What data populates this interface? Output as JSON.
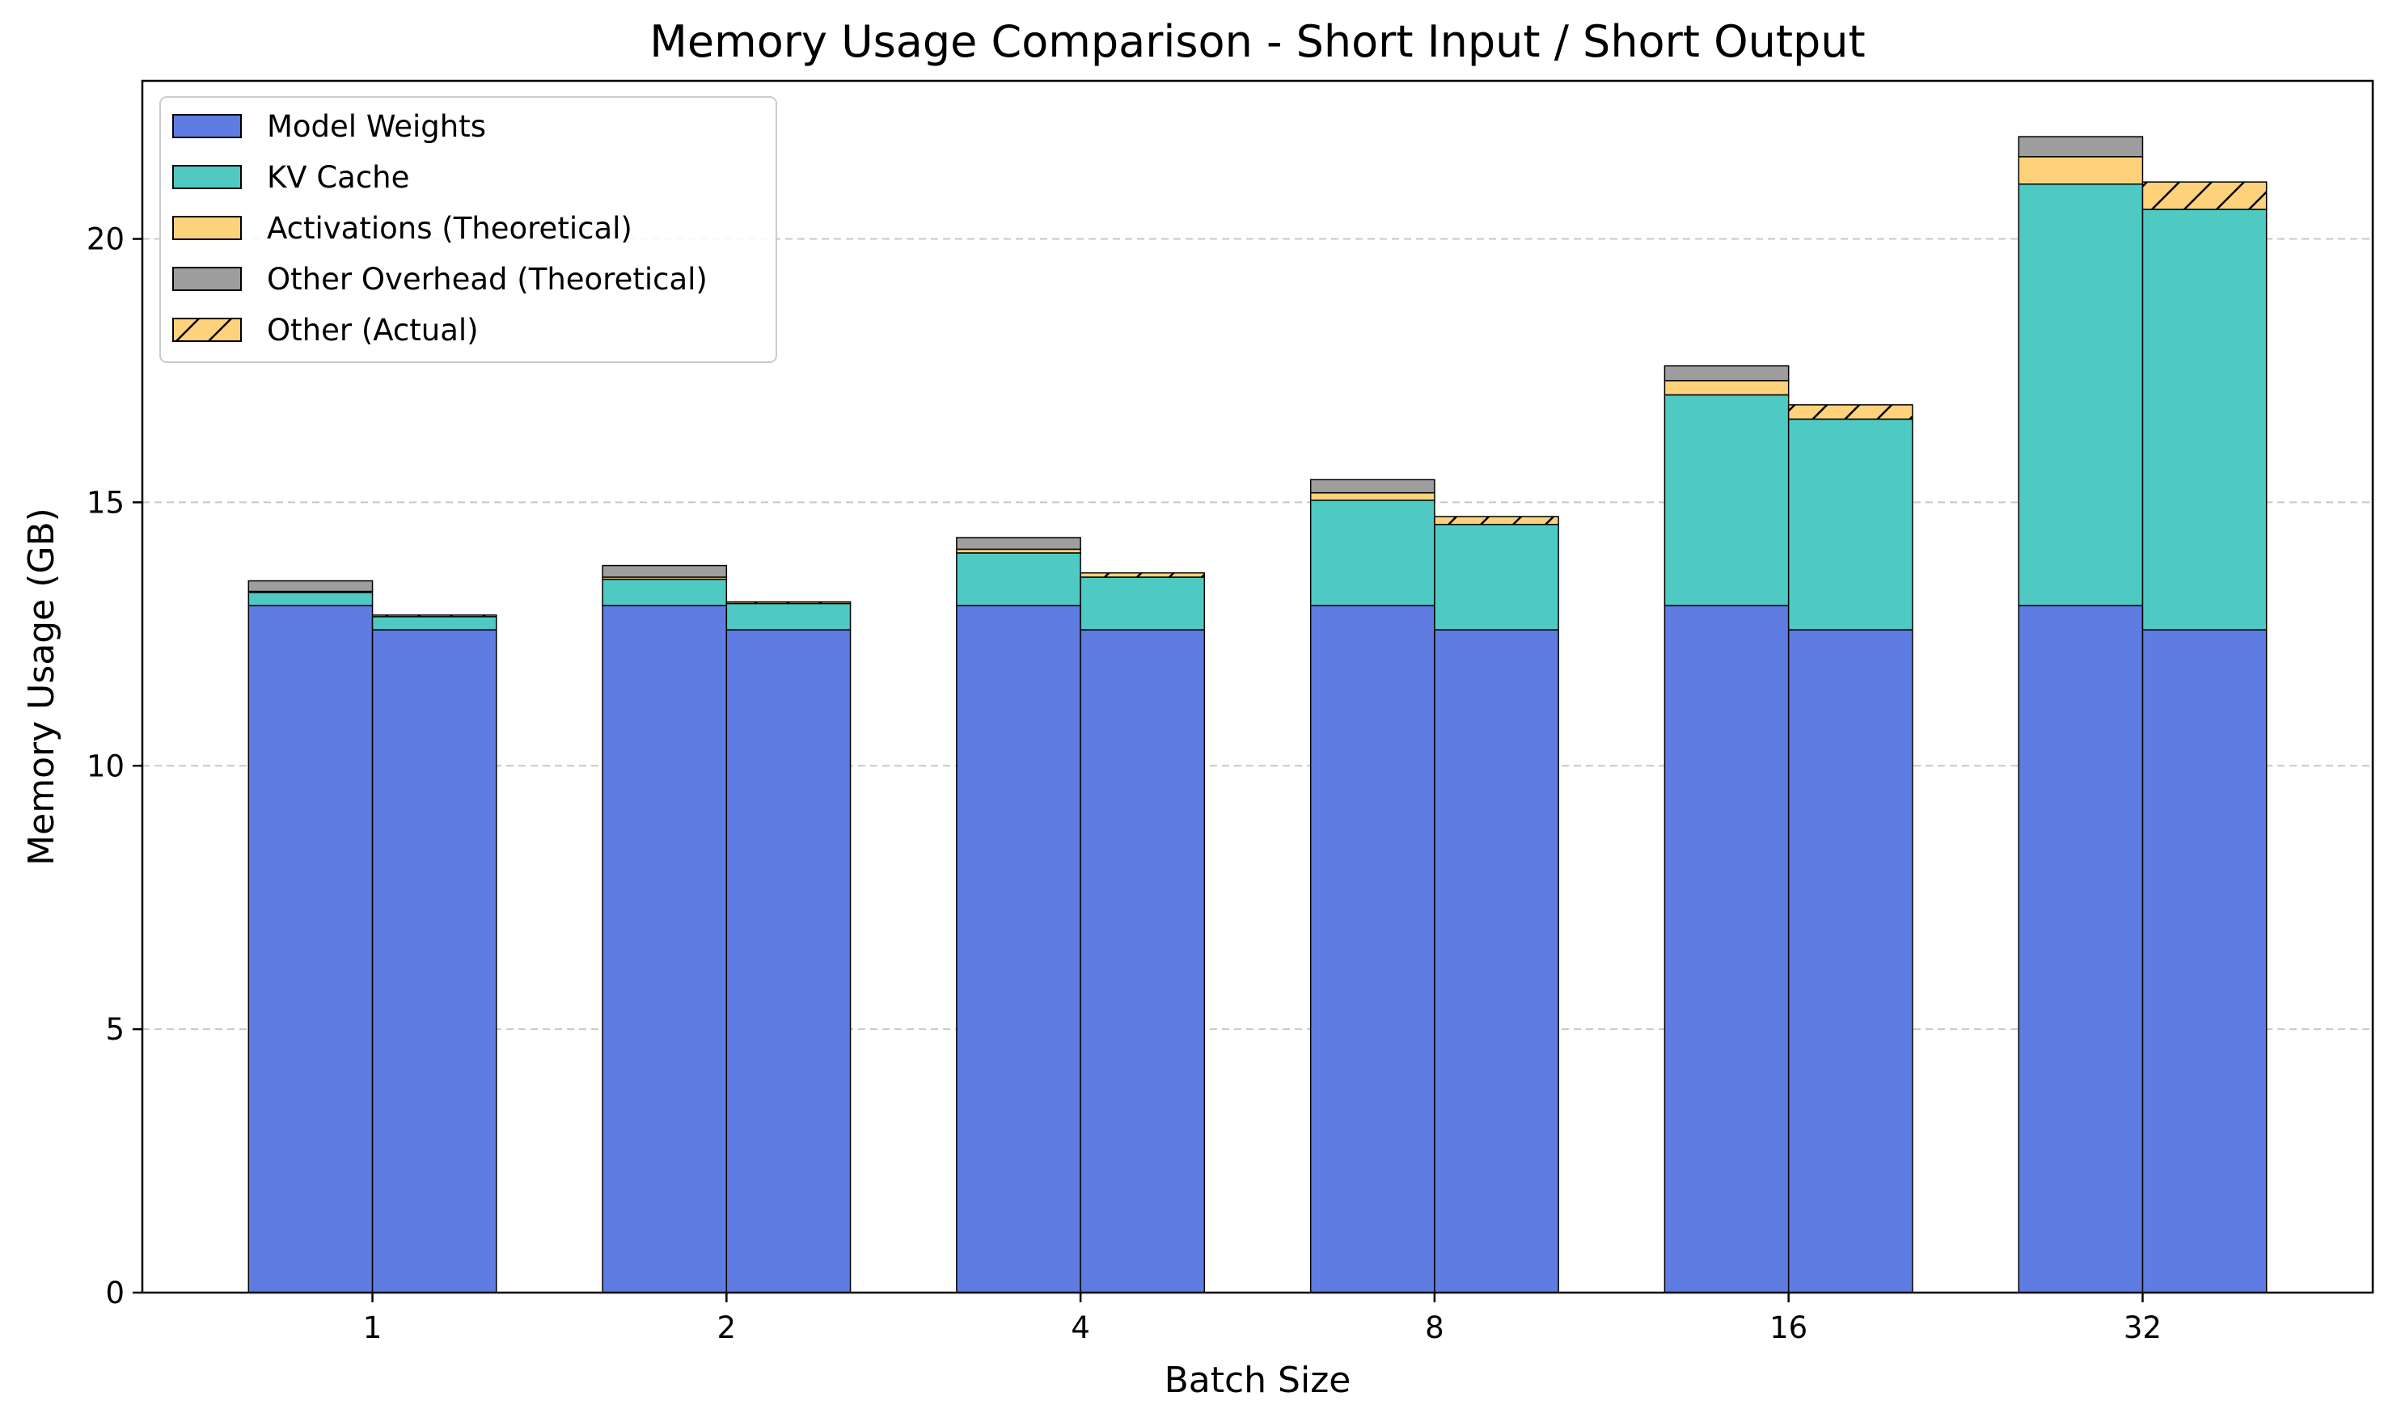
{
  "chart_data": {
    "type": "bar",
    "title": "Memory Usage Comparison - Short Input / Short Output",
    "xlabel": "Batch Size",
    "ylabel": "Memory Usage (GB)",
    "categories": [
      "1",
      "2",
      "4",
      "8",
      "16",
      "32"
    ],
    "ylim": [
      0,
      23
    ],
    "yticks": [
      0,
      5,
      10,
      15,
      20
    ],
    "grid": "y dashed",
    "legend_position": "top-left",
    "legend": [
      {
        "label": "Model Weights",
        "color": "#5f7ce2",
        "hatch": false
      },
      {
        "label": "KV Cache",
        "color": "#4ecac3",
        "hatch": false
      },
      {
        "label": "Activations (Theoretical)",
        "color": "#fdd27a",
        "hatch": false
      },
      {
        "label": "Other Overhead (Theoretical)",
        "color": "#9e9e9e",
        "hatch": false
      },
      {
        "label": "Other (Actual)",
        "color": "#fdd27a",
        "hatch": true
      }
    ],
    "theoretical": {
      "model_weights": [
        13.04,
        13.04,
        13.04,
        13.04,
        13.04,
        13.04
      ],
      "kv_cache": [
        0.25,
        0.5,
        1.0,
        2.0,
        4.0,
        8.0
      ],
      "activations": [
        0.02,
        0.04,
        0.07,
        0.14,
        0.27,
        0.52
      ],
      "other_overhead": [
        0.2,
        0.22,
        0.22,
        0.25,
        0.28,
        0.38
      ]
    },
    "actual": {
      "model_weights": [
        12.58,
        12.58,
        12.58,
        12.58,
        12.58,
        12.58
      ],
      "kv_cache": [
        0.25,
        0.5,
        1.0,
        2.0,
        4.0,
        7.98
      ],
      "other": [
        0.03,
        0.03,
        0.08,
        0.15,
        0.27,
        0.52
      ]
    }
  }
}
